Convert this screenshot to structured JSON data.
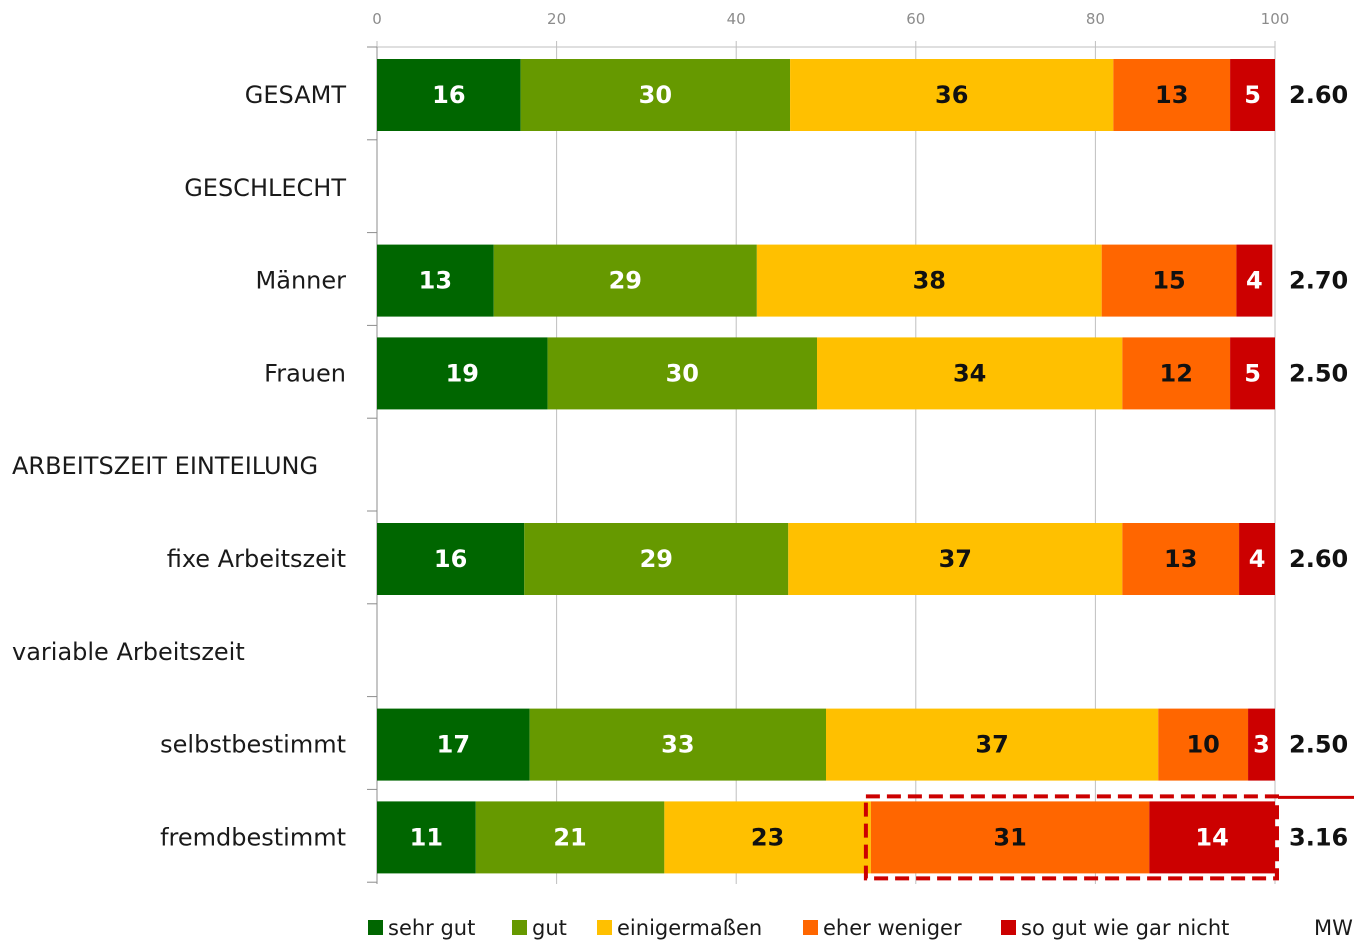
{
  "chart_data": {
    "type": "bar",
    "orientation": "horizontal",
    "stacked": true,
    "xlim": [
      0,
      100
    ],
    "xticks": [
      0,
      20,
      40,
      60,
      80,
      100
    ],
    "grid": true,
    "legend_position": "bottom",
    "categories": [
      "GESAMT",
      "GESCHLECHT",
      "Männer",
      "Frauen",
      "ARBEITSZEIT EINTEILUNG",
      "fixe Arbeitszeit",
      "variable Arbeitszeit",
      "selbstbestimmt",
      "fremdbestimmt"
    ],
    "series": [
      {
        "name": "sehr gut",
        "color": "#006600",
        "label_color": "#ffffff",
        "values": [
          16,
          null,
          13,
          19,
          null,
          16.4,
          null,
          17,
          11
        ]
      },
      {
        "name": "gut",
        "color": "#669900",
        "label_color": "#ffffff",
        "values": [
          30,
          null,
          29.3,
          30,
          null,
          29.4,
          null,
          33,
          21
        ]
      },
      {
        "name": "einigermaßen",
        "color": "#ffc000",
        "label_color": "#111111",
        "values": [
          36,
          null,
          38.4,
          34,
          null,
          37.2,
          null,
          37,
          23
        ]
      },
      {
        "name": "eher weniger",
        "color": "#ff6600",
        "label_color": "#111111",
        "values": [
          13,
          null,
          15,
          12,
          null,
          13,
          null,
          10,
          31
        ]
      },
      {
        "name": "so gut wie gar nicht",
        "color": "#cc0000",
        "label_color": "#ffffff",
        "values": [
          5,
          null,
          4,
          5,
          null,
          4,
          null,
          3,
          14
        ]
      }
    ],
    "data_labels": [
      [
        "16",
        "30",
        "36",
        "13",
        "5"
      ],
      null,
      [
        "13",
        "29",
        "38",
        "15",
        "4"
      ],
      [
        "19",
        "30",
        "34",
        "12",
        "5"
      ],
      null,
      [
        "16",
        "29",
        "37",
        "13",
        "4"
      ],
      null,
      [
        "17",
        "33",
        "37",
        "10",
        "3"
      ],
      [
        "11",
        "21",
        "23",
        "31",
        "14"
      ]
    ],
    "mw_label": "MW",
    "mw_values": [
      "2.60",
      null,
      "2.70",
      "2.50",
      null,
      "2.60",
      null,
      "2.50",
      "3.16"
    ],
    "highlight": {
      "category": "fremdbestimmt",
      "series": [
        "eher weniger",
        "so gut wie gar nicht"
      ],
      "color": "#cc0000",
      "style": "dashed"
    }
  }
}
